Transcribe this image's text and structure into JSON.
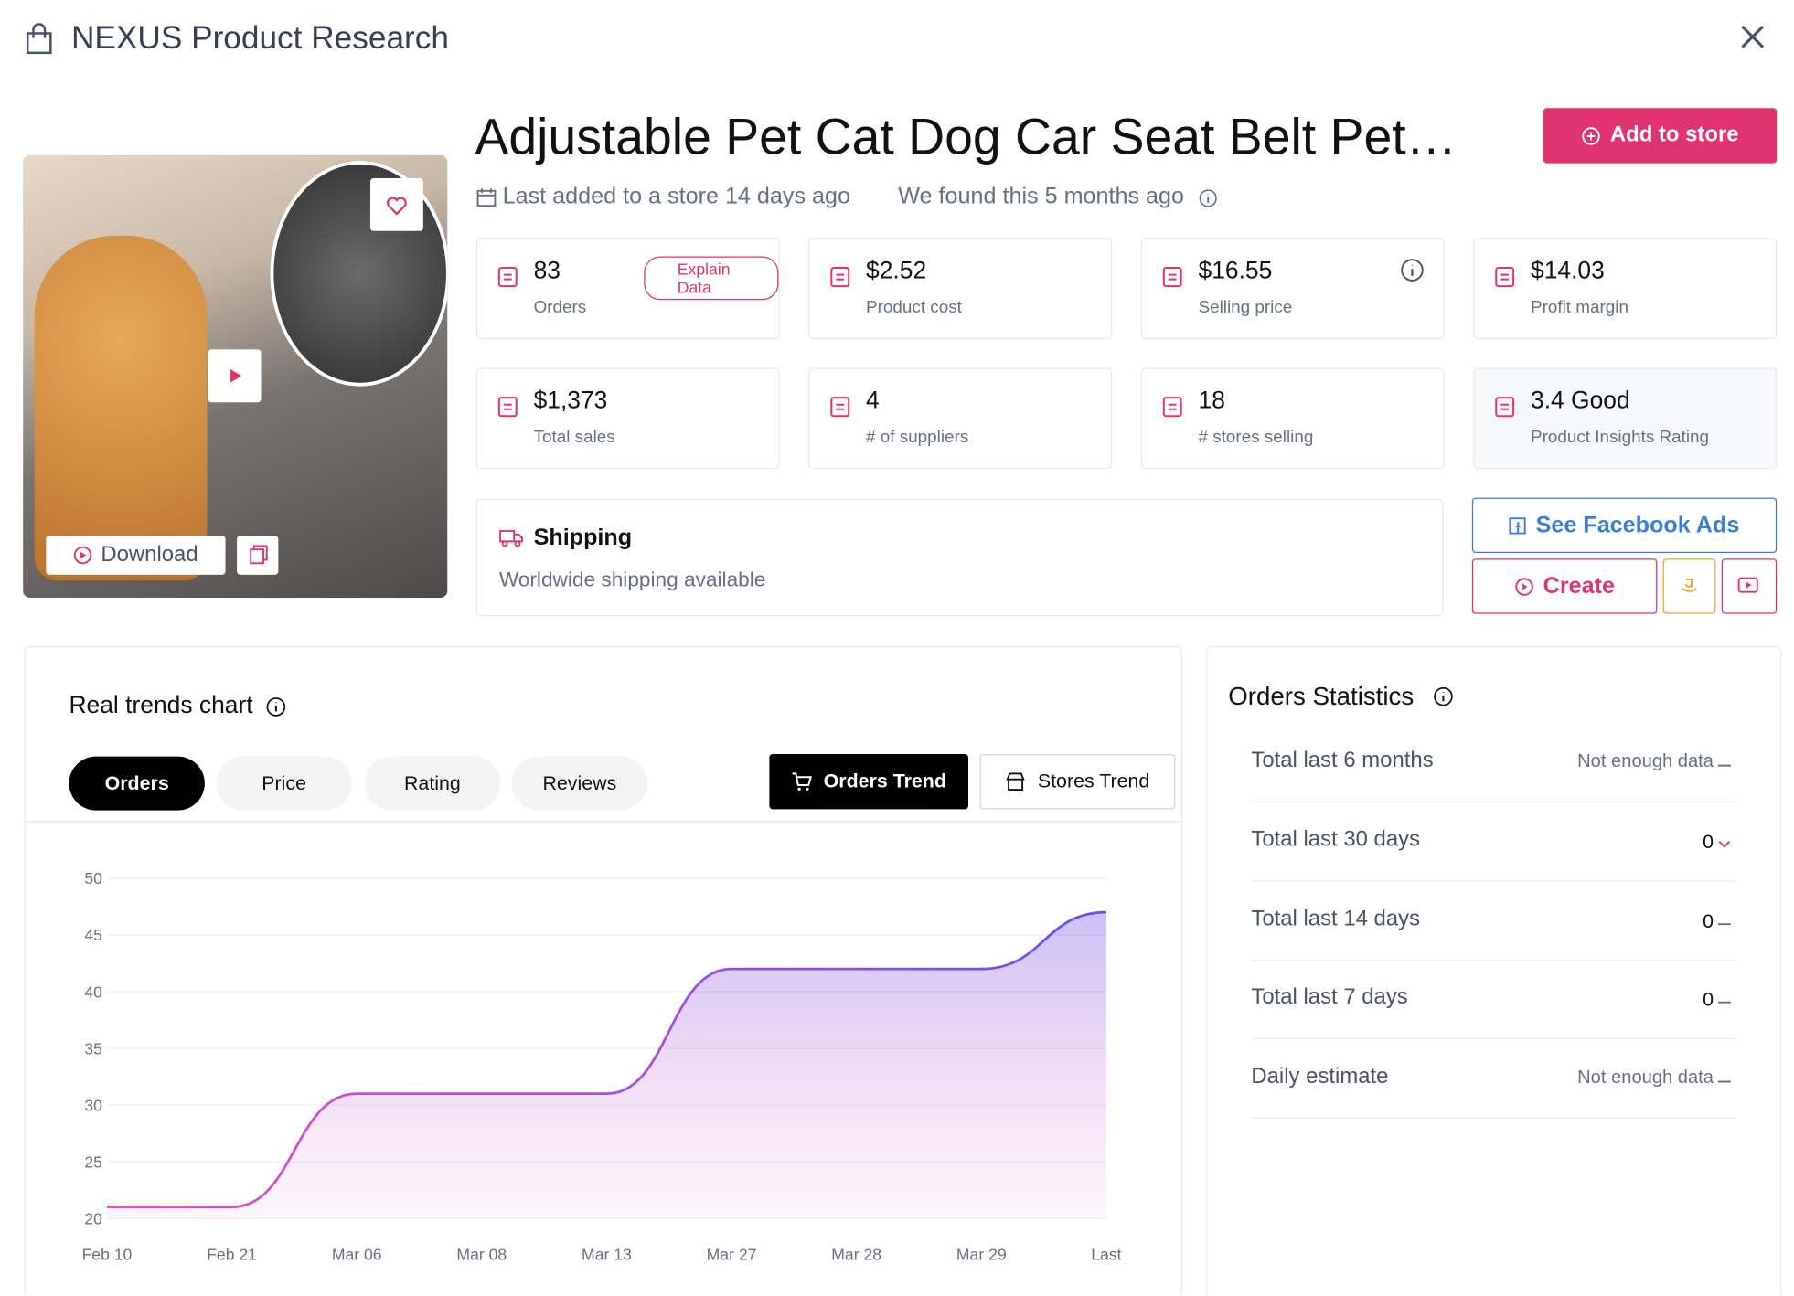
{
  "header": {
    "title": "NEXUS Product Research"
  },
  "product": {
    "title": "Adjustable Pet Cat Dog Car Seat Belt Pet…",
    "last_added": "Last added to a store 14 days ago",
    "found": "We found this 5 months ago",
    "add_button": "Add to store",
    "download": "Download",
    "explain": "Explain Data"
  },
  "stats": [
    {
      "value": "83",
      "label": "Orders"
    },
    {
      "value": "$2.52",
      "label": "Product cost"
    },
    {
      "value": "$16.55",
      "label": "Selling price"
    },
    {
      "value": "$14.03",
      "label": "Profit margin"
    },
    {
      "value": "$1,373",
      "label": "Total sales"
    },
    {
      "value": "4",
      "label": "# of suppliers"
    },
    {
      "value": "18",
      "label": "# stores selling"
    },
    {
      "value": "3.4 Good",
      "label": "Product Insights Rating"
    }
  ],
  "shipping": {
    "title": "Shipping",
    "text": "Worldwide shipping available"
  },
  "actions": {
    "facebook": "See Facebook Ads",
    "create": "Create"
  },
  "trends": {
    "title": "Real trends chart",
    "tabs": [
      "Orders",
      "Price",
      "Rating",
      "Reviews"
    ],
    "modes": [
      "Orders Trend",
      "Stores Trend"
    ]
  },
  "chart_data": {
    "type": "line",
    "categories": [
      "Feb 10",
      "Feb 21",
      "Mar 06",
      "Mar 08",
      "Mar 13",
      "Mar 27",
      "Mar 28",
      "Mar 29",
      "Last"
    ],
    "values": [
      21,
      21,
      31,
      31,
      31,
      42,
      42,
      42,
      47
    ],
    "ylim": [
      20,
      50
    ],
    "yticks": [
      20,
      25,
      30,
      35,
      40,
      45,
      50
    ],
    "grid": true,
    "colors": [
      "#e64fc4",
      "#6a4ee8"
    ]
  },
  "orders_statistics": {
    "title": "Orders Statistics",
    "rows": [
      {
        "label": "Total last 6 months",
        "value": "Not enough data"
      },
      {
        "label": "Total last 30 days",
        "value": "0"
      },
      {
        "label": "Total last 14 days",
        "value": "0"
      },
      {
        "label": "Total last 7 days",
        "value": "0"
      },
      {
        "label": "Daily estimate",
        "value": "Not enough data"
      }
    ]
  }
}
